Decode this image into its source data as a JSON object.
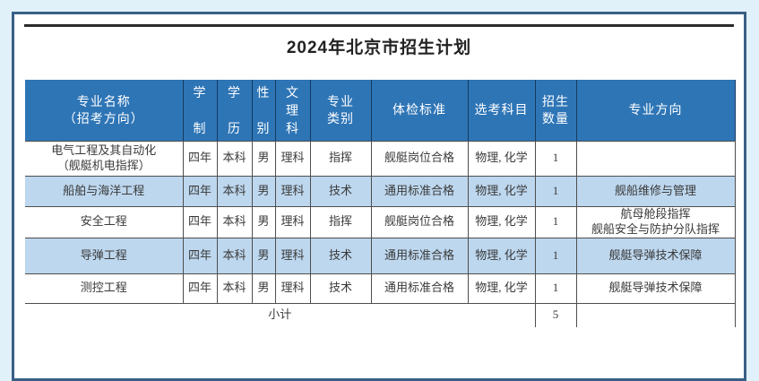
{
  "page": {
    "title": "2024年北京市招生计划"
  },
  "colors": {
    "page_bg": "#e0f1fa",
    "panel_border": "#3a5f86",
    "rule_color": "#2b2b2b",
    "header_bg": "#2e75b6",
    "row_alt_bg": "#bdd7ee"
  },
  "table": {
    "headers": [
      {
        "key": "name",
        "label": "专业名称（招考方向）",
        "lines": [
          "专业名称",
          "（招考方向）"
        ],
        "vertical": false
      },
      {
        "key": "duration",
        "label": "学制",
        "lines": [
          "学",
          "制"
        ],
        "vertical": true
      },
      {
        "key": "degree",
        "label": "学历",
        "lines": [
          "学",
          "历"
        ],
        "vertical": true
      },
      {
        "key": "gender",
        "label": "性别",
        "lines": [
          "性",
          "别"
        ],
        "vertical": true
      },
      {
        "key": "track",
        "label": "文理科",
        "lines": [
          "文",
          "理",
          "科"
        ],
        "vertical": true
      },
      {
        "key": "category",
        "label": "专业类别",
        "lines": [
          "专业",
          "类别"
        ],
        "vertical": false
      },
      {
        "key": "physical",
        "label": "体检标准",
        "lines": [
          "体检标准"
        ],
        "vertical": false
      },
      {
        "key": "subjects",
        "label": "选考科目",
        "lines": [
          "选考科目"
        ],
        "vertical": false
      },
      {
        "key": "count",
        "label": "招生数量",
        "lines": [
          "招生",
          "数量"
        ],
        "vertical": false
      },
      {
        "key": "direction",
        "label": "专业方向",
        "lines": [
          "专业方向"
        ],
        "vertical": false
      }
    ],
    "rows": [
      {
        "name": [
          "电气工程及其自动化",
          "（舰艇机电指挥）"
        ],
        "duration": "四年",
        "degree": "本科",
        "gender": "男",
        "track": "理科",
        "category": "指挥",
        "physical": "舰艇岗位合格",
        "subjects": "物理, 化学",
        "count": "1",
        "direction": []
      },
      {
        "name": [
          "船舶与海洋工程"
        ],
        "duration": "四年",
        "degree": "本科",
        "gender": "男",
        "track": "理科",
        "category": "技术",
        "physical": "通用标准合格",
        "subjects": "物理, 化学",
        "count": "1",
        "direction": [
          "舰船维修与管理"
        ]
      },
      {
        "name": [
          "安全工程"
        ],
        "duration": "四年",
        "degree": "本科",
        "gender": "男",
        "track": "理科",
        "category": "指挥",
        "physical": "舰艇岗位合格",
        "subjects": "物理, 化学",
        "count": "1",
        "direction": [
          "航母舱段指挥",
          "舰船安全与防护分队指挥"
        ]
      },
      {
        "name": [
          "导弹工程"
        ],
        "duration": "四年",
        "degree": "本科",
        "gender": "男",
        "track": "理科",
        "category": "技术",
        "physical": "通用标准合格",
        "subjects": "物理, 化学",
        "count": "1",
        "direction": [
          "舰艇导弹技术保障"
        ]
      },
      {
        "name": [
          "测控工程"
        ],
        "duration": "四年",
        "degree": "本科",
        "gender": "男",
        "track": "理科",
        "category": "技术",
        "physical": "通用标准合格",
        "subjects": "物理, 化学",
        "count": "1",
        "direction": [
          "舰艇导弹技术保障"
        ]
      }
    ],
    "subtotal": {
      "label": "小计",
      "count": "5",
      "direction": ""
    }
  }
}
